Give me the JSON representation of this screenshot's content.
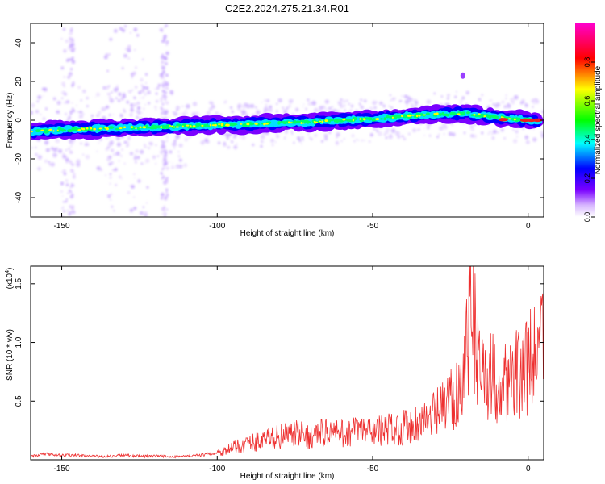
{
  "title": "C2E2.2024.275.21.34.R01",
  "colors": {
    "snr_line": "#ee3030",
    "ridge_core": "#ee2020",
    "heatmap_bg": "#ffffff"
  },
  "chart_data": [
    {
      "type": "heatmap",
      "xlabel": "Height of straight line (km)",
      "ylabel": "Frequency (Hz)",
      "xlim": [
        -160,
        5
      ],
      "ylim": [
        -50,
        50
      ],
      "x_ticks": [
        -150,
        -100,
        -50,
        0
      ],
      "x_tick_labels": [
        "-150",
        "-100",
        "-50",
        "0"
      ],
      "y_ticks": [
        -40,
        -20,
        0,
        20,
        40
      ],
      "y_tick_labels": [
        "-40",
        "-20",
        "0",
        "20",
        "40"
      ],
      "ridge": {
        "x": [
          -160,
          -150,
          -140,
          -130,
          -120,
          -110,
          -100,
          -90,
          -80,
          -70,
          -60,
          -50,
          -40,
          -30,
          -20,
          -10,
          0,
          5
        ],
        "y": [
          -6,
          -5,
          -4.5,
          -4,
          -3.5,
          -3,
          -2.5,
          -2,
          -1.5,
          -1,
          0,
          0.5,
          2,
          3,
          3.5,
          1.5,
          0,
          0
        ]
      },
      "colorbar": {
        "label": "Normalized spectral amplitude",
        "range": [
          0,
          1
        ],
        "ticks": [
          0.0,
          0.2,
          0.4,
          0.6,
          0.8
        ],
        "tick_labels": [
          "0.0",
          "0.2",
          "0.4",
          "0.6",
          "0.8"
        ],
        "colormap": [
          "#ffffff",
          "#7a00ff",
          "#0000ff",
          "#00ffff",
          "#00ff00",
          "#ffff00",
          "#ff0000",
          "#ff00cc"
        ]
      }
    },
    {
      "type": "line",
      "xlabel": "Height of straight line (km)",
      "ylabel": "SNR (10 * v/v)",
      "scale_label": "(x10",
      "scale_exponent": "4",
      "xlim": [
        -160,
        5
      ],
      "ylim": [
        0,
        1.65
      ],
      "x_ticks": [
        -150,
        -100,
        -50,
        0
      ],
      "x_tick_labels": [
        "-150",
        "-100",
        "-50",
        "0"
      ],
      "y_ticks": [
        0.5,
        1.0,
        1.5
      ],
      "y_tick_labels": [
        "0.5",
        "1.0",
        "1.5"
      ],
      "series": [
        {
          "x": [
            -160,
            -155,
            -150,
            -145,
            -140,
            -135,
            -130,
            -125,
            -120,
            -115,
            -110,
            -105,
            -100,
            -95,
            -90,
            -85,
            -80,
            -75,
            -70,
            -65,
            -60,
            -55,
            -50,
            -45,
            -40,
            -35,
            -30,
            -25,
            -22,
            -20,
            -18,
            -15,
            -12,
            -10,
            -5,
            0,
            3,
            5
          ],
          "values": [
            0.03,
            0.05,
            0.04,
            0.04,
            0.03,
            0.03,
            0.04,
            0.03,
            0.03,
            0.03,
            0.03,
            0.04,
            0.06,
            0.1,
            0.14,
            0.17,
            0.2,
            0.22,
            0.2,
            0.24,
            0.22,
            0.25,
            0.24,
            0.26,
            0.28,
            0.32,
            0.38,
            0.5,
            0.65,
            0.9,
            1.25,
            0.75,
            0.72,
            0.68,
            0.7,
            0.8,
            0.92,
            0.98
          ]
        }
      ]
    }
  ]
}
